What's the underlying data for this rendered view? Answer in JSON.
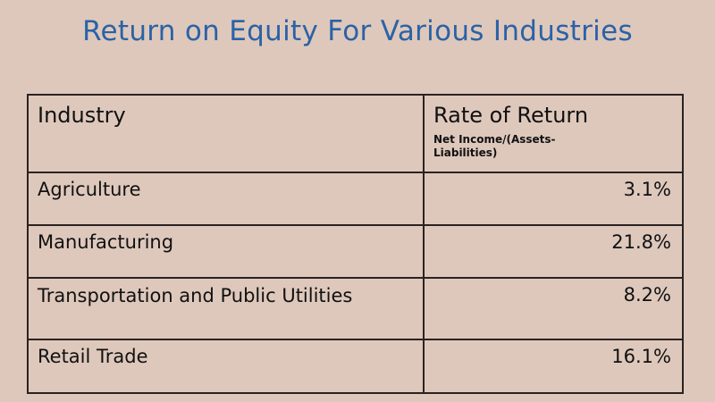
{
  "title": "Return on Equity For Various Industries",
  "table": {
    "headers": {
      "industry": "Industry",
      "rate": "Rate of Return",
      "rate_sub": "Net Income/(Assets-Liabilities)"
    },
    "rows": [
      {
        "industry": "Agriculture",
        "rate": "3.1%"
      },
      {
        "industry": "Manufacturing",
        "rate": "21.8%"
      },
      {
        "industry": "Transportation and Public Utilities",
        "rate": "8.2%"
      },
      {
        "industry": "Retail Trade",
        "rate": "16.1%"
      }
    ]
  },
  "colors": {
    "title": "#2b62a6",
    "background": "#dec8bc"
  }
}
